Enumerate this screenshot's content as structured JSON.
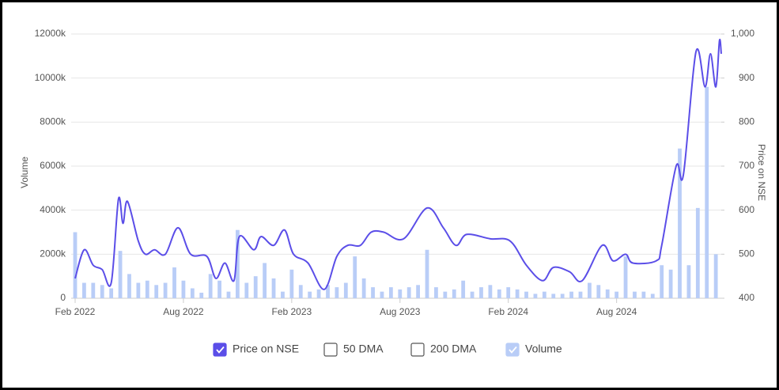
{
  "chart_data": {
    "type": "bar-line",
    "ylabel": "Volume",
    "y2label": "Price on NSE",
    "xlim": [
      0,
      35.8
    ],
    "xticks": [
      {
        "value": 0,
        "label": "Feb 2022"
      },
      {
        "value": 6,
        "label": "Aug 2022"
      },
      {
        "value": 12,
        "label": "Feb 2023"
      },
      {
        "value": 18,
        "label": "Aug 2023"
      },
      {
        "value": 24,
        "label": "Feb 2024"
      },
      {
        "value": 30,
        "label": "Aug 2024"
      }
    ],
    "ylim": [
      0,
      12000
    ],
    "yticks": [
      0,
      {
        "value": 2000,
        "label": "2000k"
      },
      {
        "value": 4000,
        "label": "4000k"
      },
      {
        "value": 6000,
        "label": "6000k"
      },
      {
        "value": 8000,
        "label": "8000k"
      },
      {
        "value": 10000,
        "label": "10000k"
      },
      {
        "value": 12000,
        "label": "12000k"
      }
    ],
    "y2lim": [
      400,
      1000
    ],
    "y2ticks": [
      400,
      500,
      600,
      700,
      800,
      900,
      {
        "value": 1000,
        "label": "1,000"
      }
    ],
    "grid": true,
    "series": [
      {
        "name": "Price on NSE",
        "type": "line",
        "axis": "y2",
        "color": "#5b4ee8",
        "visible": true,
        "x": [
          0,
          0.5,
          1,
          1.5,
          2,
          2.4,
          2.65,
          2.9,
          3.5,
          3.9,
          4.4,
          5,
          5.7,
          6.4,
          7.3,
          7.8,
          8.3,
          8.8,
          9.1,
          9.9,
          10.3,
          11,
          11.6,
          12.1,
          12.9,
          13.8,
          14.5,
          15.1,
          15.8,
          16.4,
          17.1,
          18.2,
          19.5,
          20.4,
          21.1,
          21.7,
          23,
          24.1,
          25,
          25.9,
          26.5,
          27.4,
          28.1,
          29.2,
          29.8,
          30.5,
          30.9,
          32.2,
          32.5,
          33.3,
          33.7,
          34.4,
          34.9,
          35.2,
          35.5,
          35.7,
          35.8
        ],
        "values": [
          445,
          510,
          475,
          465,
          435,
          625,
          570,
          620,
          530,
          500,
          510,
          500,
          560,
          500,
          495,
          445,
          480,
          440,
          540,
          510,
          540,
          520,
          555,
          500,
          480,
          420,
          495,
          520,
          520,
          550,
          550,
          535,
          605,
          560,
          520,
          545,
          535,
          530,
          475,
          440,
          470,
          460,
          440,
          520,
          485,
          500,
          480,
          485,
          520,
          700,
          680,
          960,
          880,
          955,
          880,
          985,
          955
        ]
      },
      {
        "name": "50 DMA",
        "visible": false
      },
      {
        "name": "200 DMA",
        "visible": false
      },
      {
        "name": "Volume",
        "type": "bar",
        "color": "#b9cdf7",
        "visible": true,
        "x": [
          0,
          0.5,
          1,
          1.5,
          2,
          2.5,
          3,
          3.5,
          4,
          4.5,
          5,
          5.5,
          6,
          6.5,
          7,
          7.5,
          8,
          8.5,
          9,
          9.5,
          10,
          10.5,
          11,
          11.5,
          12,
          12.5,
          13,
          13.5,
          14,
          14.5,
          15,
          15.5,
          16,
          16.5,
          17,
          17.5,
          18,
          18.5,
          19,
          19.5,
          20,
          20.5,
          21,
          21.5,
          22,
          22.5,
          23,
          23.5,
          24,
          24.5,
          25,
          25.5,
          26,
          26.5,
          27,
          27.5,
          28,
          28.5,
          29,
          29.5,
          30,
          30.5,
          31,
          31.5,
          32,
          32.5,
          33,
          33.5,
          34,
          34.5,
          35,
          35.5
        ],
        "values": [
          3000,
          700,
          700,
          600,
          450,
          2150,
          1100,
          700,
          800,
          600,
          700,
          1400,
          800,
          450,
          250,
          1100,
          800,
          300,
          3100,
          700,
          1000,
          1600,
          900,
          300,
          1300,
          600,
          300,
          400,
          600,
          500,
          700,
          1900,
          900,
          500,
          300,
          500,
          400,
          500,
          600,
          2200,
          500,
          300,
          400,
          800,
          300,
          500,
          600,
          400,
          500,
          400,
          300,
          200,
          300,
          200,
          200,
          300,
          300,
          700,
          600,
          400,
          300,
          1900,
          300,
          300,
          200,
          1500,
          1300,
          6800,
          1500,
          4100,
          9600,
          2000
        ]
      }
    ]
  }
}
